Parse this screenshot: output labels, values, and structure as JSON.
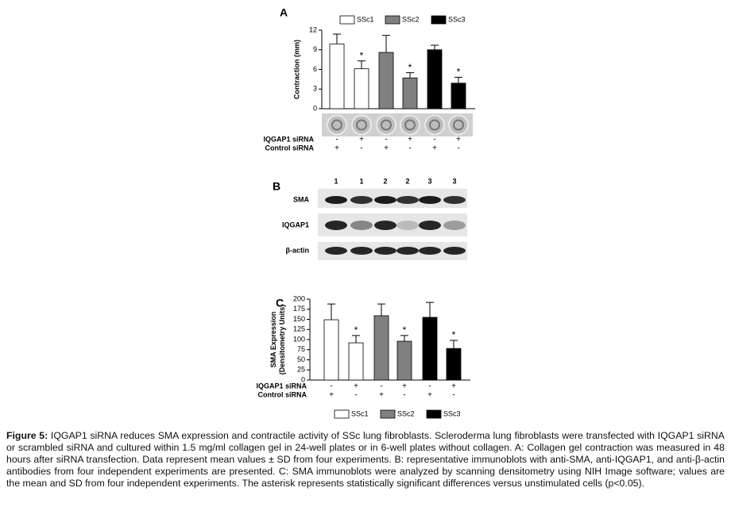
{
  "chart_data": [
    {
      "type": "bar",
      "panel": "A",
      "ylabel": [
        "Contraction (mm)"
      ],
      "ylim": [
        0,
        12
      ],
      "yticks": [
        0,
        3,
        6,
        9,
        12
      ],
      "series": [
        {
          "name": "SSc1",
          "color": "#ffffff",
          "values": [
            9.9,
            6.1
          ],
          "errors": [
            1.5,
            1.2
          ],
          "marks": [
            null,
            "*"
          ]
        },
        {
          "name": "SSc2",
          "color": "#808080",
          "values": [
            8.6,
            4.7
          ],
          "errors": [
            2.6,
            0.8
          ],
          "marks": [
            null,
            "*"
          ]
        },
        {
          "name": "SSc3",
          "color": "#000000",
          "values": [
            9.0,
            3.9
          ],
          "errors": [
            0.7,
            0.9
          ],
          "marks": [
            null,
            "*"
          ]
        }
      ],
      "x_rows": [
        {
          "label": "IQGAP1 siRNA",
          "signs": [
            "-",
            "+",
            "-",
            "+",
            "-",
            "+"
          ]
        },
        {
          "label": "Control siRNA",
          "signs": [
            "+",
            "-",
            "+",
            "-",
            "+",
            "-"
          ]
        }
      ]
    },
    {
      "type": "bar",
      "panel": "C",
      "ylabel": [
        "SMA Expression",
        "(Densitometry Units)"
      ],
      "ylim": [
        0,
        200
      ],
      "yticks": [
        0,
        25,
        50,
        75,
        100,
        125,
        150,
        175,
        200
      ],
      "series": [
        {
          "name": "SSc1",
          "color": "#ffffff",
          "values": [
            149,
            92
          ],
          "errors": [
            39,
            18
          ],
          "marks": [
            null,
            "*"
          ]
        },
        {
          "name": "SSc2",
          "color": "#808080",
          "values": [
            159,
            96
          ],
          "errors": [
            29,
            14
          ],
          "marks": [
            null,
            "*"
          ]
        },
        {
          "name": "SSc3",
          "color": "#000000",
          "values": [
            155,
            78
          ],
          "errors": [
            37,
            20
          ],
          "marks": [
            null,
            "*"
          ]
        }
      ],
      "x_rows": [
        {
          "label": "IQGAP1 siRNA",
          "signs": [
            "-",
            "+",
            "-",
            "+",
            "-",
            "+"
          ]
        },
        {
          "label": "Control siRNA",
          "signs": [
            "+",
            "-",
            "+",
            "-",
            "+",
            "-"
          ]
        }
      ]
    }
  ],
  "blot": {
    "panel": "B",
    "lanes": [
      "1",
      "1",
      "2",
      "2",
      "3",
      "3"
    ],
    "rows": [
      "SMA",
      "IQGAP1",
      "β-actin"
    ]
  },
  "caption": {
    "lead": "Figure 5:",
    "text": "IQGAP1 siRNA reduces SMA expression and contractile activity of SSc lung fibroblasts. Scleroderma lung fibroblasts were transfected with IQGAP1 siRNA or scrambled siRNA and cultured within 1.5 mg/ml collagen gel in 24-well plates or in 6-well plates without collagen. A: Collagen gel contraction was measured in 48 hours after siRNA transfection. Data represent mean values ± SD from four experiments. B: representative immunoblots with anti-SMA, anti-IQGAP1, and anti-β-actin antibodies from four independent experiments are presented. C: SMA immunoblots were analyzed by scanning densitometry using NIH Image software; values are the mean and SD from four independent experiments. The asterisk represents statistically significant differences versus unstimulated cells (p<0.05)."
  }
}
